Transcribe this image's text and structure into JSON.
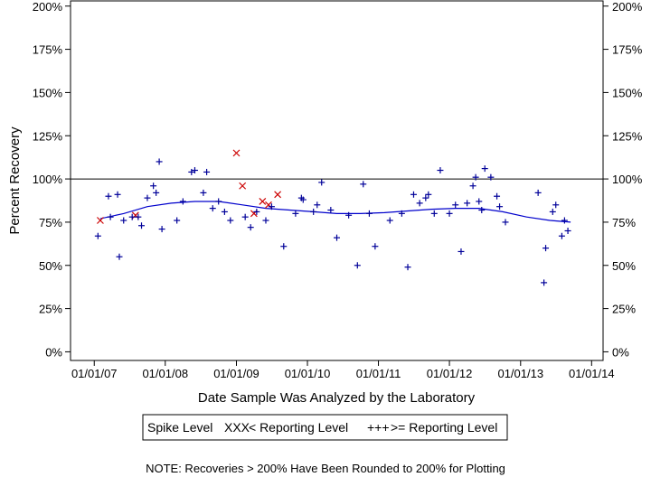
{
  "chart_data": {
    "type": "scatter",
    "xlabel": "Date Sample Was Analyzed by the Laboratory",
    "ylabel": "Percent Recovery",
    "x_ticks": [
      "01/01/07",
      "01/01/08",
      "01/01/09",
      "01/01/10",
      "01/01/11",
      "01/01/12",
      "01/01/13",
      "01/01/14"
    ],
    "y_ticks": [
      "0%",
      "25%",
      "50%",
      "75%",
      "100%",
      "125%",
      "150%",
      "175%",
      "200%"
    ],
    "xlim": [
      "2006-09-01",
      "2014-03-01"
    ],
    "ylim": [
      -5,
      203
    ],
    "reference_line": 100,
    "legend": {
      "title": "Spike Level",
      "entries": [
        {
          "symbol_text": "XXX",
          "label": "< Reporting Level",
          "color": "#cc0000"
        },
        {
          "symbol_text": "+++",
          "label": ">= Reporting Level",
          "color": "#000099"
        }
      ]
    },
    "series": [
      {
        "name": "< Reporting Level",
        "marker": "x",
        "color": "#cc0000",
        "points": [
          [
            "2007-02-01",
            76
          ],
          [
            "2007-08-01",
            79
          ],
          [
            "2009-01-01",
            115
          ],
          [
            "2009-02-01",
            96
          ],
          [
            "2009-04-01",
            80
          ],
          [
            "2009-05-15",
            87
          ],
          [
            "2009-06-15",
            85
          ],
          [
            "2009-08-01",
            91
          ]
        ]
      },
      {
        "name": ">= Reporting Level",
        "marker": "plus",
        "color": "#000099",
        "points": [
          [
            "2007-01-20",
            67
          ],
          [
            "2007-03-15",
            90
          ],
          [
            "2007-03-25",
            78
          ],
          [
            "2007-05-01",
            91
          ],
          [
            "2007-05-10",
            55
          ],
          [
            "2007-06-01",
            76
          ],
          [
            "2007-07-15",
            78
          ],
          [
            "2007-08-15",
            78
          ],
          [
            "2007-09-01",
            73
          ],
          [
            "2007-10-01",
            89
          ],
          [
            "2007-11-01",
            96
          ],
          [
            "2007-11-15",
            92
          ],
          [
            "2007-12-01",
            110
          ],
          [
            "2007-12-15",
            71
          ],
          [
            "2008-03-01",
            76
          ],
          [
            "2008-04-01",
            87
          ],
          [
            "2008-05-15",
            104
          ],
          [
            "2008-06-01",
            105
          ],
          [
            "2008-07-15",
            92
          ],
          [
            "2008-08-01",
            104
          ],
          [
            "2008-09-01",
            83
          ],
          [
            "2008-10-01",
            87
          ],
          [
            "2008-11-01",
            81
          ],
          [
            "2008-12-01",
            76
          ],
          [
            "2009-02-15",
            78
          ],
          [
            "2009-03-15",
            72
          ],
          [
            "2009-04-15",
            81
          ],
          [
            "2009-06-01",
            76
          ],
          [
            "2009-07-01",
            84
          ],
          [
            "2009-09-01",
            61
          ],
          [
            "2009-11-01",
            80
          ],
          [
            "2009-12-01",
            89
          ],
          [
            "2009-12-10",
            88
          ],
          [
            "2010-02-01",
            81
          ],
          [
            "2010-02-20",
            85
          ],
          [
            "2010-03-15",
            98
          ],
          [
            "2010-05-01",
            82
          ],
          [
            "2010-06-01",
            66
          ],
          [
            "2010-08-01",
            79
          ],
          [
            "2010-09-15",
            50
          ],
          [
            "2010-10-15",
            97
          ],
          [
            "2010-11-15",
            80
          ],
          [
            "2010-12-15",
            61
          ],
          [
            "2011-03-01",
            76
          ],
          [
            "2011-05-01",
            80
          ],
          [
            "2011-06-01",
            49
          ],
          [
            "2011-07-01",
            91
          ],
          [
            "2011-08-01",
            86
          ],
          [
            "2011-09-01",
            89
          ],
          [
            "2011-09-15",
            91
          ],
          [
            "2011-10-15",
            80
          ],
          [
            "2011-11-15",
            105
          ],
          [
            "2012-01-01",
            80
          ],
          [
            "2012-02-01",
            85
          ],
          [
            "2012-03-01",
            58
          ],
          [
            "2012-04-01",
            86
          ],
          [
            "2012-05-01",
            96
          ],
          [
            "2012-05-15",
            101
          ],
          [
            "2012-06-01",
            87
          ],
          [
            "2012-06-15",
            82
          ],
          [
            "2012-07-01",
            106
          ],
          [
            "2012-08-01",
            101
          ],
          [
            "2012-09-01",
            90
          ],
          [
            "2012-09-15",
            84
          ],
          [
            "2012-10-15",
            75
          ],
          [
            "2013-04-01",
            92
          ],
          [
            "2013-05-01",
            40
          ],
          [
            "2013-05-10",
            60
          ],
          [
            "2013-06-15",
            81
          ],
          [
            "2013-07-01",
            85
          ],
          [
            "2013-08-01",
            67
          ],
          [
            "2013-08-15",
            76
          ],
          [
            "2013-09-01",
            70
          ]
        ]
      }
    ],
    "trend_line": [
      [
        "2007-02-01",
        77
      ],
      [
        "2007-06-01",
        80
      ],
      [
        "2007-10-01",
        84
      ],
      [
        "2008-02-01",
        86
      ],
      [
        "2008-06-01",
        87
      ],
      [
        "2008-10-01",
        87
      ],
      [
        "2009-02-01",
        85
      ],
      [
        "2009-06-01",
        83
      ],
      [
        "2009-10-01",
        82
      ],
      [
        "2010-02-01",
        81
      ],
      [
        "2010-06-01",
        80
      ],
      [
        "2010-10-01",
        80
      ],
      [
        "2011-02-01",
        80.5
      ],
      [
        "2011-06-01",
        81.5
      ],
      [
        "2011-10-01",
        82.5
      ],
      [
        "2012-02-01",
        83
      ],
      [
        "2012-06-01",
        83
      ],
      [
        "2012-10-01",
        81
      ],
      [
        "2013-02-01",
        78
      ],
      [
        "2013-06-01",
        76
      ],
      [
        "2013-09-15",
        75
      ]
    ],
    "note": "NOTE: Recoveries > 200% Have Been Rounded to 200% for Plotting"
  }
}
